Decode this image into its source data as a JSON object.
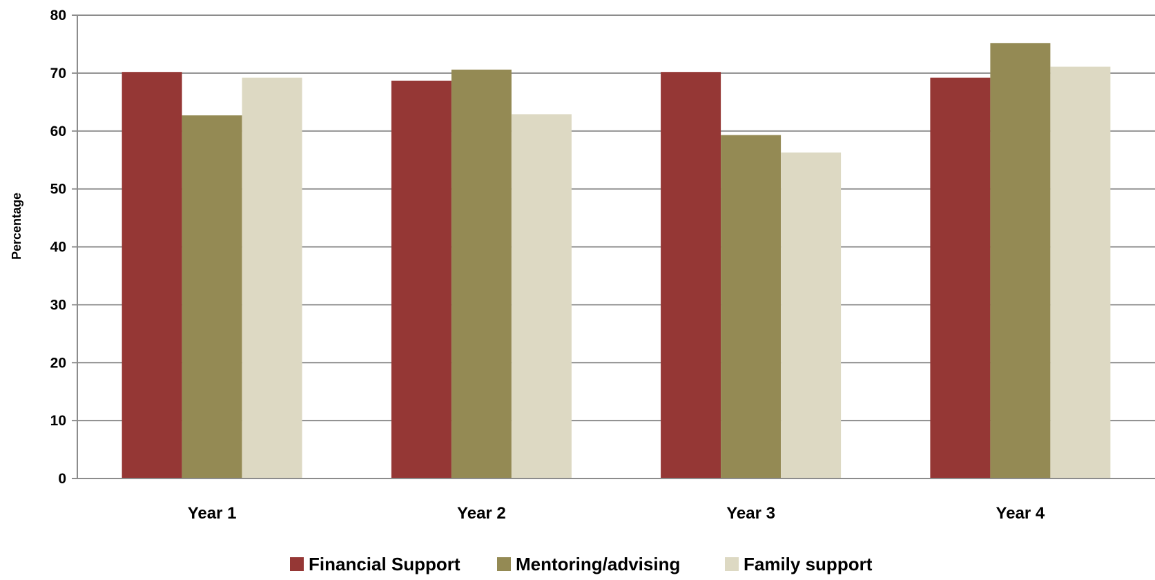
{
  "chart_data": {
    "type": "bar",
    "title": "",
    "xlabel": "",
    "ylabel": "Percentage",
    "ylim": [
      0,
      80
    ],
    "yticks": [
      0,
      10,
      20,
      30,
      40,
      50,
      60,
      70,
      80
    ],
    "grid": true,
    "legend_position": "bottom",
    "categories": [
      "Year 1",
      "Year 2",
      "Year 3",
      "Year 4"
    ],
    "series": [
      {
        "name": "Financial Support",
        "color": "#953735",
        "values": [
          70.2,
          68.7,
          70.2,
          69.2
        ]
      },
      {
        "name": "Mentoring/advising",
        "color": "#948A54",
        "values": [
          62.7,
          70.6,
          59.3,
          75.2
        ]
      },
      {
        "name": "Family support",
        "color": "#DDD9C3",
        "values": [
          69.2,
          62.9,
          56.3,
          71.1
        ]
      }
    ]
  }
}
